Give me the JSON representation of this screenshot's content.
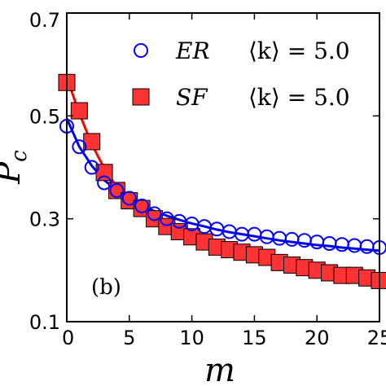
{
  "chart_data": {
    "type": "scatter",
    "xlabel": "m",
    "ylabel": "P_c",
    "xlim": [
      0,
      25
    ],
    "ylim": [
      0.1,
      0.7
    ],
    "x_ticks": [
      0,
      5,
      10,
      15,
      20,
      25
    ],
    "x_tick_labels": [
      "0",
      "5",
      "10",
      "15",
      "20",
      "25"
    ],
    "y_ticks": [
      0.1,
      0.3,
      0.5,
      0.7
    ],
    "y_tick_labels": [
      "0.1",
      "0.3",
      "0.5",
      "0.7"
    ],
    "grid": false,
    "legend_position": "top-right",
    "annotation": "(b)",
    "series": [
      {
        "name": "ER",
        "legend_k": "⟨k⟩ = 5.0",
        "color": "#0000ff",
        "marker": "circle-open",
        "x": [
          0,
          1,
          2,
          3,
          4,
          5,
          6,
          7,
          8,
          9,
          10,
          11,
          12,
          13,
          14,
          15,
          16,
          17,
          18,
          19,
          20,
          21,
          22,
          23,
          24,
          25
        ],
        "y": [
          0.48,
          0.44,
          0.4,
          0.37,
          0.355,
          0.34,
          0.325,
          0.31,
          0.3,
          0.295,
          0.29,
          0.285,
          0.28,
          0.275,
          0.27,
          0.27,
          0.265,
          0.262,
          0.26,
          0.258,
          0.255,
          0.252,
          0.25,
          0.248,
          0.246,
          0.244
        ],
        "fit_y": [
          0.495,
          0.44,
          0.403,
          0.375,
          0.355,
          0.339,
          0.326,
          0.315,
          0.306,
          0.298,
          0.291,
          0.285,
          0.279,
          0.274,
          0.27,
          0.266,
          0.262,
          0.258,
          0.255,
          0.252,
          0.249,
          0.247,
          0.244,
          0.242,
          0.24,
          0.238
        ]
      },
      {
        "name": "SF",
        "legend_k": "⟨k⟩ = 5.0",
        "color": "#ff0000",
        "marker": "square-filled",
        "x": [
          0,
          1,
          2,
          3,
          4,
          5,
          6,
          7,
          8,
          9,
          10,
          11,
          12,
          13,
          14,
          15,
          16,
          17,
          18,
          19,
          20,
          21,
          22,
          23,
          24,
          25
        ],
        "y": [
          0.565,
          0.51,
          0.45,
          0.39,
          0.355,
          0.335,
          0.32,
          0.3,
          0.285,
          0.275,
          0.265,
          0.255,
          0.245,
          0.24,
          0.235,
          0.23,
          0.225,
          0.215,
          0.21,
          0.205,
          0.2,
          0.195,
          0.19,
          0.19,
          0.185,
          0.18
        ],
        "fit_y": [
          0.575,
          0.505,
          0.445,
          0.398,
          0.362,
          0.336,
          0.315,
          0.298,
          0.284,
          0.272,
          0.262,
          0.253,
          0.245,
          0.238,
          0.232,
          0.226,
          0.221,
          0.216,
          0.211,
          0.207,
          0.203,
          0.199,
          0.195,
          0.192,
          0.188,
          0.185
        ]
      }
    ]
  }
}
